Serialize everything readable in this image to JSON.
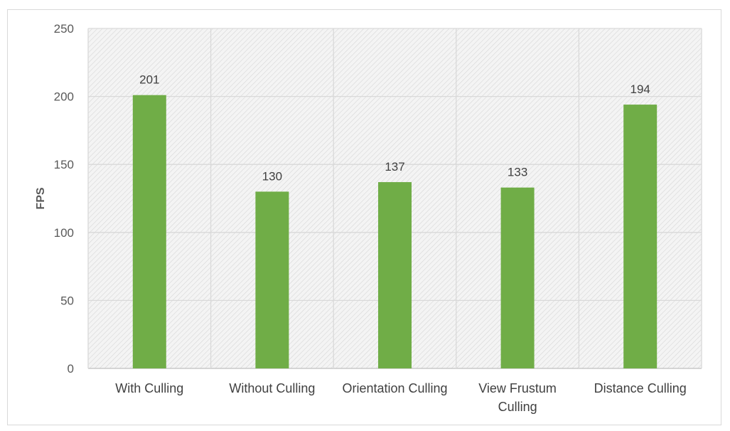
{
  "chart_data": {
    "type": "bar",
    "categories": [
      "With Culling",
      "Without Culling",
      "Orientation Culling",
      "View Frustum Culling",
      "Distance Culling"
    ],
    "category_lines": [
      [
        "With Culling"
      ],
      [
        "Without Culling"
      ],
      [
        "Orientation Culling"
      ],
      [
        "View Frustum",
        "Culling"
      ],
      [
        "Distance Culling"
      ]
    ],
    "values": [
      201,
      130,
      137,
      133,
      194
    ],
    "ylabel": "FPS",
    "xlabel": "",
    "title": "",
    "ylim": [
      0,
      250
    ],
    "yticks": [
      0,
      50,
      100,
      150,
      200,
      250
    ],
    "grid": true,
    "legend": "none",
    "bar_color": "#70ad47",
    "plot_background": "hatched light gray"
  }
}
